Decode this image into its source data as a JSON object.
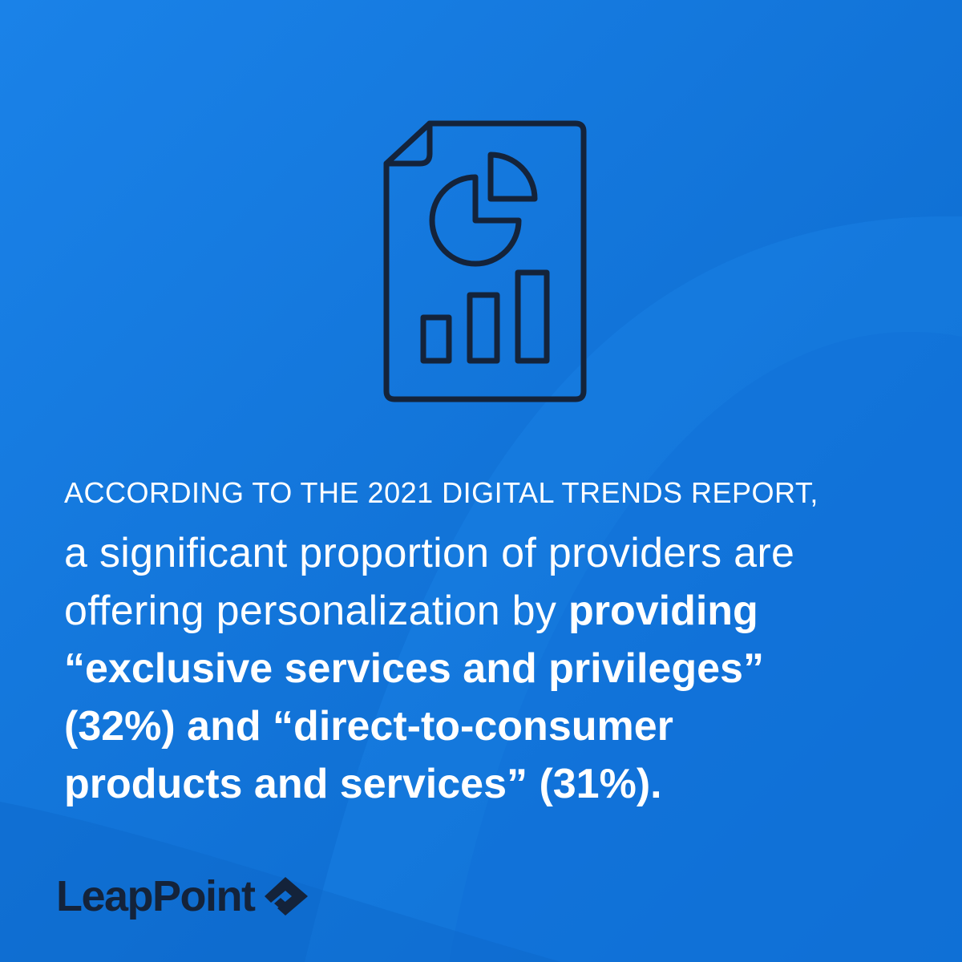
{
  "colors": {
    "background": "#0d70d8",
    "icon_stroke": "#14233a",
    "text": "#ffffff",
    "logo": "#14233a"
  },
  "icon": {
    "name": "report-chart-icon"
  },
  "headline": {
    "kicker": "ACCORDING TO THE 2021 DIGITAL TRENDS REPORT,",
    "line1": "a significant proportion of providers are",
    "line2_regular": "offering personalization by ",
    "line2_bold": "providing",
    "line3": "“exclusive services and privileges”",
    "line4": "(32%) and “direct-to-consumer",
    "line5": "products and services” (31%)."
  },
  "brand": {
    "name": "LeapPoint",
    "mark_icon": "leappoint-diamond-logo-icon"
  }
}
